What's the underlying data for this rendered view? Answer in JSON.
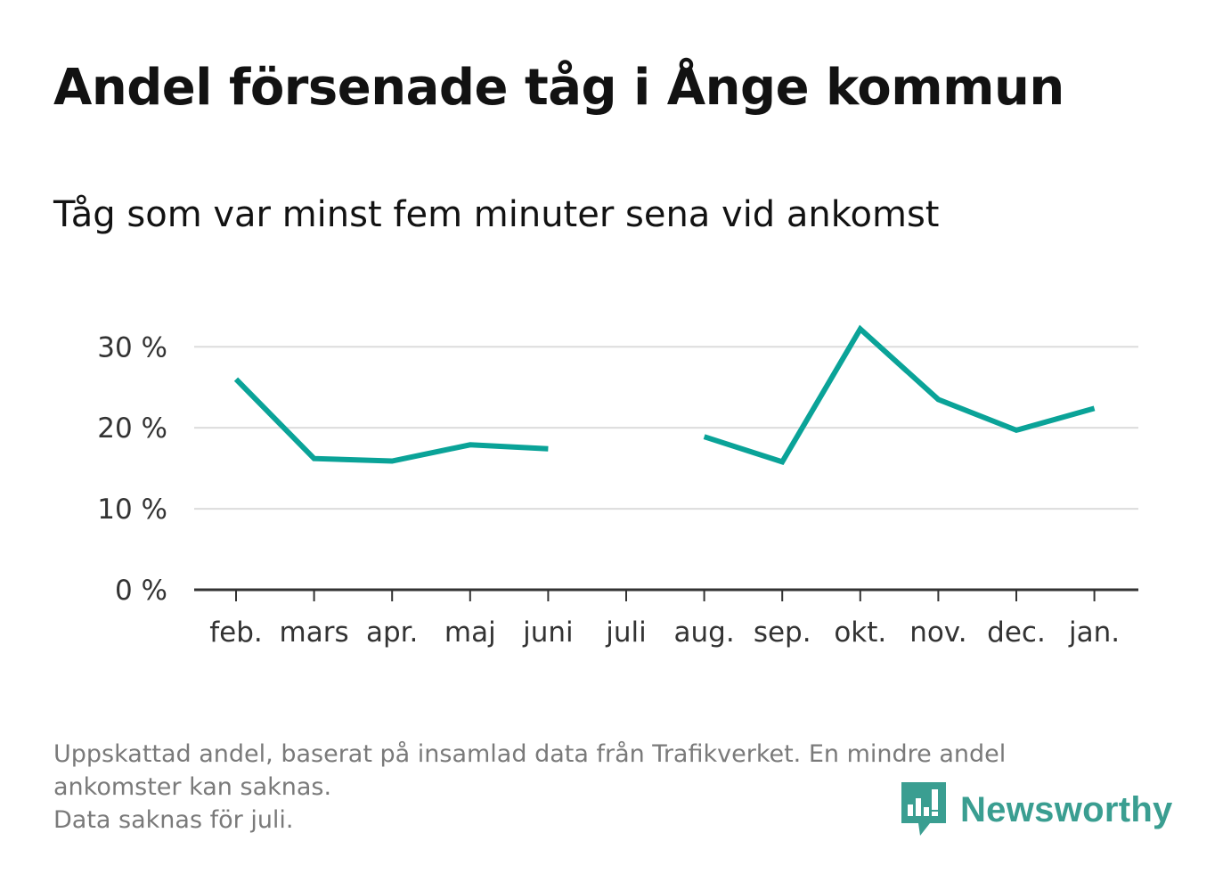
{
  "header": {
    "title": "Andel försenade tåg i Ånge kommun",
    "subtitle": "Tåg som var minst fem minuter sena vid ankomst"
  },
  "chart_data": {
    "type": "line",
    "categories": [
      "feb.",
      "mars",
      "apr.",
      "maj",
      "juni",
      "juli",
      "aug.",
      "sep.",
      "okt.",
      "nov.",
      "dec.",
      "jan."
    ],
    "series": [
      {
        "values": [
          26.0,
          16.2,
          15.9,
          17.9,
          17.4,
          null,
          18.9,
          15.8,
          32.2,
          23.5,
          19.7,
          22.4
        ]
      }
    ],
    "yticks": [
      0,
      10,
      20,
      30
    ],
    "ytick_labels": [
      "0 %",
      "10 %",
      "20 %",
      "30 %"
    ],
    "ylim": [
      0,
      33
    ],
    "grid": true,
    "line_color": "#0aa398",
    "title": "Andel försenade tåg i Ånge kommun",
    "xlabel": "",
    "ylabel": ""
  },
  "footnote": {
    "lines": [
      "Uppskattad andel, baserat på insamlad data från Trafikverket. En mindre andel",
      "ankomster kan saknas.",
      "Data saknas för juli."
    ]
  },
  "brand": {
    "name": "Newsworthy",
    "logo_icon": "newsworthy-logo-icon",
    "color": "#3a9e91"
  }
}
